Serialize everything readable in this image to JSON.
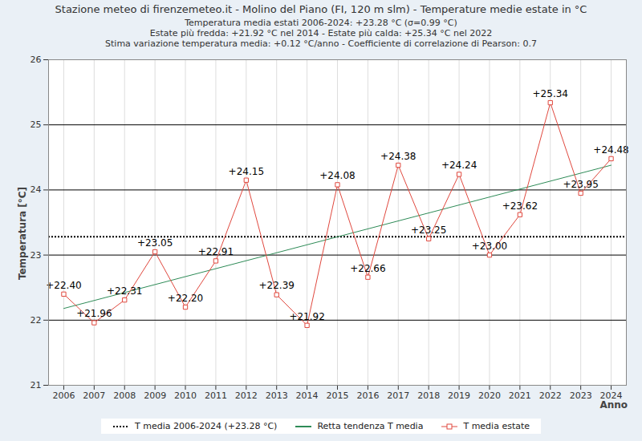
{
  "chart_data": {
    "type": "line",
    "title": "Stazione meteo di firenzemeteo.it - Molino del Piano (FI, 120 m slm) - Temperature medie estate in °C",
    "subtitle": [
      "Temperatura media estati 2006-2024: +23.28 °C (σ=0.99 °C)",
      "Estate più fredda: +21.92 °C nel 2014 - Estate più calda: +25.34 °C nel 2022",
      "Stima variazione temperatura media: +0.12 °C/anno - Coefficiente di correlazione di Pearson: 0.7"
    ],
    "x_label": "Anno",
    "y_label": "Temperatura [°C]",
    "x": [
      2006,
      2007,
      2008,
      2009,
      2010,
      2011,
      2012,
      2013,
      2014,
      2015,
      2016,
      2017,
      2018,
      2019,
      2020,
      2021,
      2022,
      2023,
      2024
    ],
    "series": [
      {
        "name": "T media estate",
        "color": "#e0483e",
        "marker": "square",
        "values": [
          22.4,
          21.96,
          22.31,
          23.05,
          22.2,
          22.91,
          24.15,
          22.39,
          21.92,
          24.08,
          22.66,
          24.38,
          23.25,
          24.24,
          23.0,
          23.62,
          25.34,
          23.95,
          24.48
        ],
        "value_labels": [
          "+22.40",
          "+21.96",
          "+22.31",
          "+23.05",
          "+22.20",
          "+22.91",
          "+24.15",
          "+22.39",
          "+21.92",
          "+24.08",
          "+22.66",
          "+24.38",
          "+23.25",
          "+24.24",
          "+23.00",
          "+23.62",
          "+25.34",
          "+23.95",
          "+24.48"
        ]
      }
    ],
    "trend": {
      "name": "Retta tendenza T media",
      "color": "#2e8b57",
      "x": [
        2006,
        2024
      ],
      "values": [
        22.18,
        24.38
      ]
    },
    "mean": {
      "name": "T media 2006-2024 (+23.28 °C)",
      "color": "#000000",
      "line_style": "dotted",
      "value": 23.28
    },
    "xlim": [
      2005.5,
      2024.5
    ],
    "ylim": [
      21,
      26
    ],
    "xticks": [
      2006,
      2007,
      2008,
      2009,
      2010,
      2011,
      2012,
      2013,
      2014,
      2015,
      2016,
      2017,
      2018,
      2019,
      2020,
      2021,
      2022,
      2023,
      2024
    ],
    "yticks": [
      21,
      22,
      23,
      24,
      25,
      26
    ],
    "grid": true,
    "data_labels": true,
    "legend": "bottom"
  }
}
